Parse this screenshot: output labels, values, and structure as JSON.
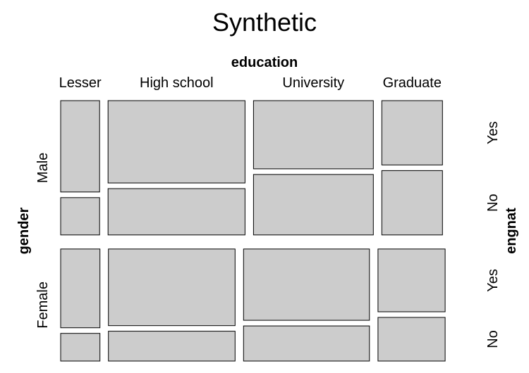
{
  "chart_data": {
    "type": "mosaic",
    "title": "Synthetic",
    "variables": {
      "top": "education",
      "left": "gender",
      "right": "engnat"
    },
    "education_levels": [
      "Lesser",
      "High school",
      "University",
      "Graduate"
    ],
    "gender_levels": [
      "Male",
      "Female"
    ],
    "engnat_levels": [
      "Yes",
      "No"
    ],
    "proportions": {
      "gender": {
        "Male": 0.545,
        "Female": 0.455
      },
      "education_given_gender": {
        "Male": {
          "Lesser": 0.102,
          "High school": 0.359,
          "University": 0.314,
          "Graduate": 0.159
        },
        "Female": {
          "Lesser": 0.103,
          "High school": 0.332,
          "University": 0.33,
          "Graduate": 0.176
        }
      },
      "engnat_yes_given_gender_education": {
        "Male": {
          "Lesser": 0.71,
          "High school": 0.64,
          "University": 0.53,
          "Graduate": 0.5
        },
        "Female": {
          "Lesser": 0.74,
          "High school": 0.72,
          "University": 0.67,
          "Graduate": 0.59
        }
      }
    },
    "fill_color": "#cccccc",
    "stroke_color": "#000000"
  }
}
